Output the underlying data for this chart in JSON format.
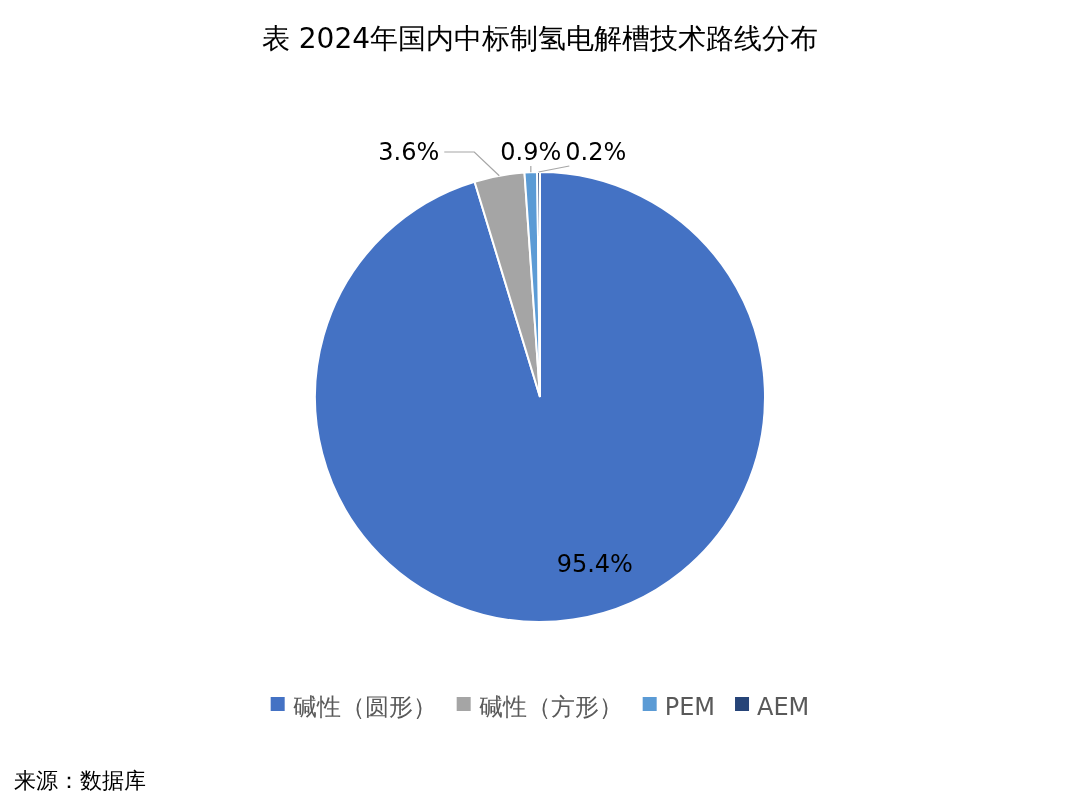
{
  "chart_data": {
    "type": "pie",
    "title": "表 2024年国内中标制氢电解槽技术路线分布",
    "categories": [
      "碱性（圆形）",
      "碱性（方形）",
      "PEM",
      "AEM"
    ],
    "values": [
      95.4,
      3.6,
      0.9,
      0.2
    ],
    "colors": [
      "#4472c4",
      "#a5a5a5",
      "#5b9bd5",
      "#264478"
    ],
    "value_labels": [
      "95.4%",
      "3.6%",
      "0.9%",
      "0.2%"
    ],
    "legend": "bottom",
    "annotations": [
      "来源：数据库"
    ]
  }
}
